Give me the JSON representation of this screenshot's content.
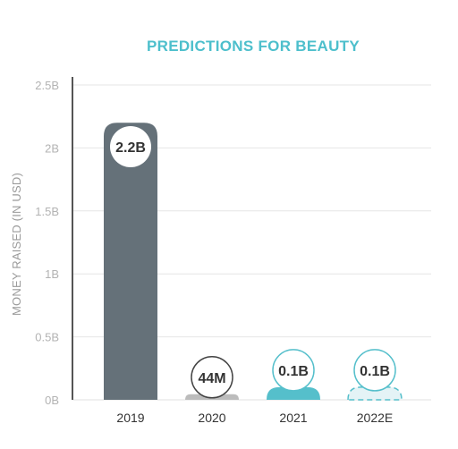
{
  "chart_data": {
    "type": "bar",
    "title": "PREDICTIONS FOR BEAUTY",
    "xlabel": "",
    "ylabel": "MONEY RAISED (IN USD)",
    "ylim": [
      0,
      2.5
    ],
    "y_ticks": [
      {
        "value": 0,
        "label": "0B"
      },
      {
        "value": 0.5,
        "label": "0.5B"
      },
      {
        "value": 1,
        "label": "1B"
      },
      {
        "value": 1.5,
        "label": "1.5B"
      },
      {
        "value": 2,
        "label": "2B"
      },
      {
        "value": 2.5,
        "label": "2.5B"
      }
    ],
    "categories": [
      "2019",
      "2020",
      "2021",
      "2022E"
    ],
    "values": [
      2.2,
      0.044,
      0.1,
      0.1
    ],
    "data_labels": [
      "2.2B",
      "44M",
      "0.1B",
      "0.1B"
    ],
    "grid": true,
    "legend": "none",
    "colors": {
      "title": "#4dbfcc",
      "bars": [
        "#657179",
        "#bcbcbc",
        "#55bfcb",
        "#e4f3f6"
      ],
      "bar_borders": [
        "#657179",
        "#bcbcbc",
        "#55bfcb",
        "#55bfcb"
      ],
      "label_circle_borders": [
        "#ffffff",
        "#444444",
        "#55bfcb",
        "#55bfcb"
      ],
      "grid": "#e6e6e6",
      "axis": "#555555"
    }
  }
}
